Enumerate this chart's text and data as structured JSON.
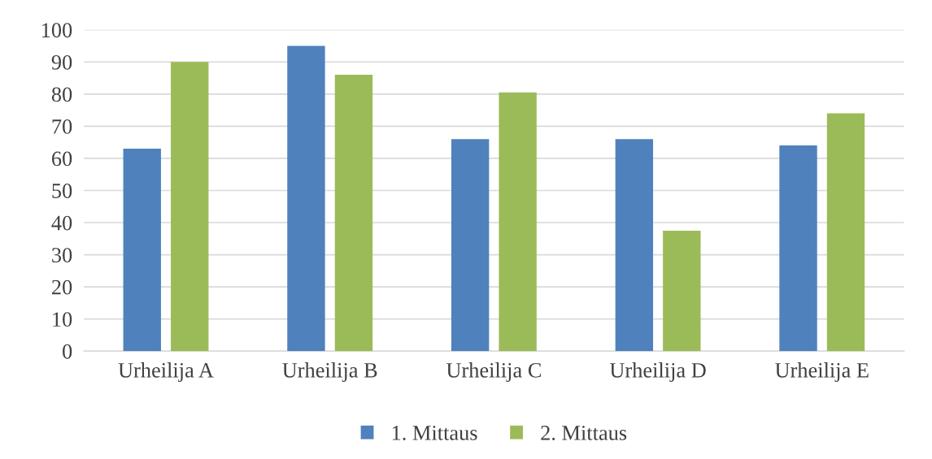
{
  "chart_data": {
    "type": "bar",
    "categories": [
      "Urheilija A",
      "Urheilija B",
      "Urheilija C",
      "Urheilija D",
      "Urheilija E"
    ],
    "series": [
      {
        "name": "1. Mittaus",
        "color": "#4f81bd",
        "values": [
          63,
          95,
          66,
          66,
          64
        ]
      },
      {
        "name": "2. Mittaus",
        "color": "#9bbb59",
        "values": [
          90,
          86,
          80.5,
          37.5,
          74
        ]
      }
    ],
    "ylim": [
      0,
      100
    ],
    "yticks": [
      0,
      10,
      20,
      30,
      40,
      50,
      60,
      70,
      80,
      90,
      100
    ],
    "grid": "y",
    "legend": "bottom"
  }
}
